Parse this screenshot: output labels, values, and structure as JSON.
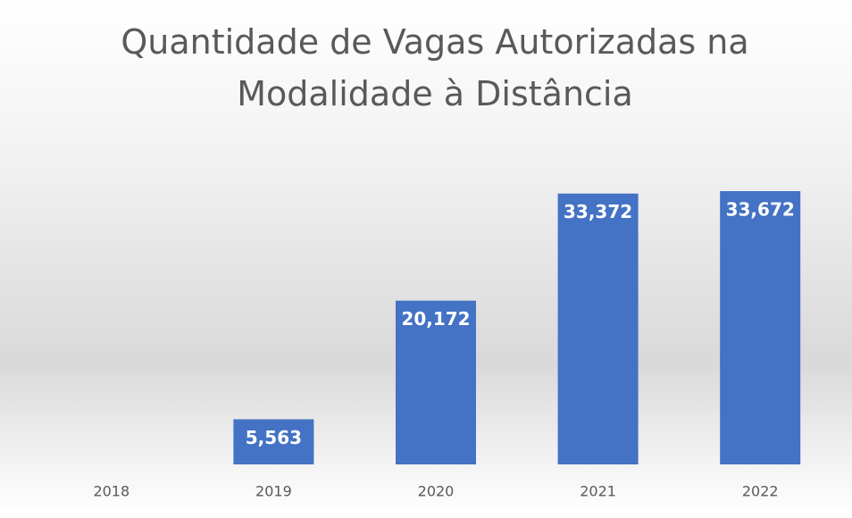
{
  "chart_data": {
    "type": "bar",
    "title": "Quantidade de Vagas Autorizadas na Modalidade à Distância",
    "categories": [
      "2018",
      "2019",
      "2020",
      "2021",
      "2022"
    ],
    "values": [
      null,
      5563,
      20172,
      33372,
      33672
    ],
    "value_labels": [
      null,
      "5,563",
      "20,172",
      "33,372",
      "33,672"
    ],
    "color": "#4472c4",
    "ylim": [
      0,
      40000
    ]
  }
}
